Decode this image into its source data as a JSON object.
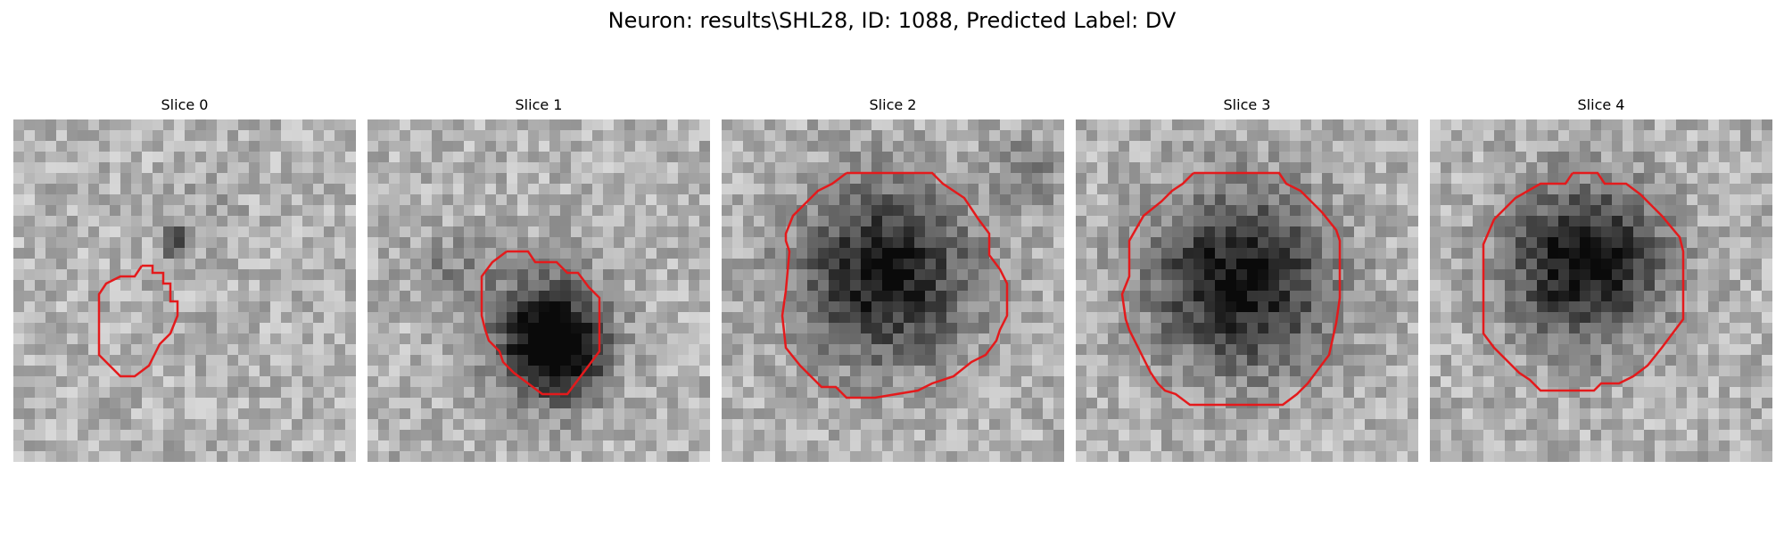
{
  "figure": {
    "title": "Neuron: results\\SHL28, ID: 1088, Predicted Label: DV"
  },
  "colors": {
    "contour": "#e41a1c"
  },
  "panels": [
    {
      "title": "Slice 0"
    },
    {
      "title": "Slice 1"
    },
    {
      "title": "Slice 2"
    },
    {
      "title": "Slice 3"
    },
    {
      "title": "Slice 4"
    }
  ]
}
